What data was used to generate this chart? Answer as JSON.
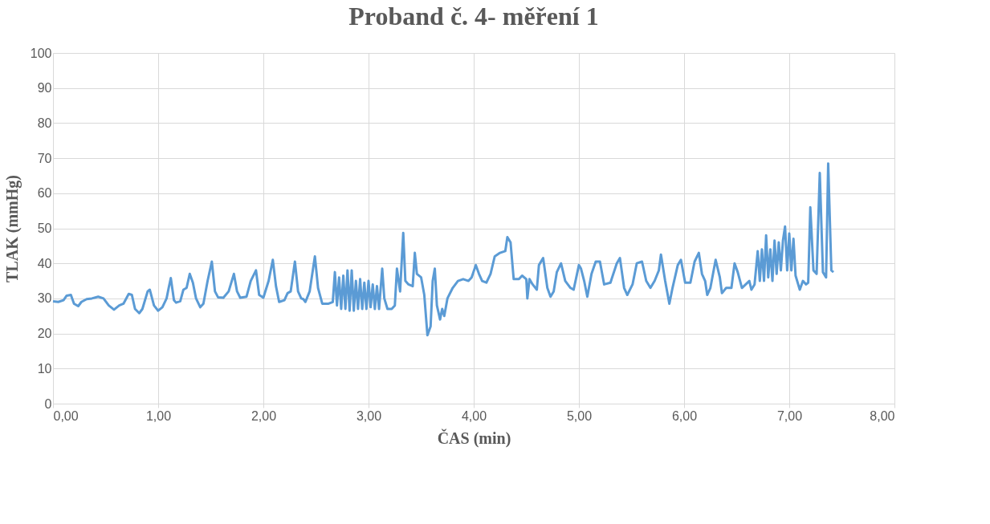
{
  "chart_data": {
    "type": "line",
    "title": "Proband č. 4- měření 1",
    "xlabel": "ČAS (min)",
    "ylabel": "TLAK (mmHg)",
    "xlim": [
      0,
      8
    ],
    "ylim": [
      0,
      100
    ],
    "xticks": [
      {
        "value": 0,
        "label": "0,00"
      },
      {
        "value": 1,
        "label": "1,00"
      },
      {
        "value": 2,
        "label": "2,00"
      },
      {
        "value": 3,
        "label": "3,00"
      },
      {
        "value": 4,
        "label": "4,00"
      },
      {
        "value": 5,
        "label": "5,00"
      },
      {
        "value": 6,
        "label": "6,00"
      },
      {
        "value": 7,
        "label": "7,00"
      },
      {
        "value": 8,
        "label": "8,00"
      }
    ],
    "yticks": [
      0,
      10,
      20,
      30,
      40,
      50,
      60,
      70,
      80,
      90,
      100
    ],
    "grid": true,
    "legend": false,
    "marker": "none",
    "line_style": "solid",
    "x": [
      0.0,
      0.05,
      0.1,
      0.13,
      0.17,
      0.2,
      0.24,
      0.27,
      0.32,
      0.37,
      0.43,
      0.48,
      0.53,
      0.58,
      0.63,
      0.67,
      0.72,
      0.75,
      0.78,
      0.82,
      0.85,
      0.9,
      0.92,
      0.96,
      1.0,
      1.04,
      1.08,
      1.1,
      1.12,
      1.15,
      1.17,
      1.21,
      1.24,
      1.27,
      1.3,
      1.33,
      1.36,
      1.4,
      1.43,
      1.47,
      1.51,
      1.54,
      1.57,
      1.62,
      1.67,
      1.72,
      1.75,
      1.78,
      1.84,
      1.88,
      1.93,
      1.96,
      2.0,
      2.05,
      2.09,
      2.12,
      2.15,
      2.2,
      2.23,
      2.26,
      2.3,
      2.33,
      2.36,
      2.38,
      2.4,
      2.44,
      2.49,
      2.52,
      2.56,
      2.62,
      2.66,
      2.68,
      2.7,
      2.72,
      2.74,
      2.76,
      2.78,
      2.8,
      2.82,
      2.84,
      2.86,
      2.88,
      2.9,
      2.92,
      2.94,
      2.96,
      2.98,
      3.0,
      3.02,
      3.04,
      3.06,
      3.08,
      3.1,
      3.13,
      3.15,
      3.18,
      3.22,
      3.25,
      3.27,
      3.3,
      3.33,
      3.35,
      3.38,
      3.42,
      3.44,
      3.46,
      3.5,
      3.53,
      3.56,
      3.59,
      3.61,
      3.63,
      3.65,
      3.68,
      3.7,
      3.72,
      3.75,
      3.8,
      3.85,
      3.9,
      3.95,
      3.98,
      4.02,
      4.05,
      4.08,
      4.12,
      4.16,
      4.2,
      4.25,
      4.3,
      4.32,
      4.35,
      4.38,
      4.43,
      4.46,
      4.5,
      4.51,
      4.53,
      4.56,
      4.6,
      4.62,
      4.66,
      4.7,
      4.73,
      4.76,
      4.79,
      4.83,
      4.87,
      4.92,
      4.95,
      5.0,
      5.02,
      5.05,
      5.08,
      5.12,
      5.16,
      5.2,
      5.24,
      5.3,
      5.36,
      5.39,
      5.43,
      5.46,
      5.51,
      5.55,
      5.6,
      5.64,
      5.68,
      5.72,
      5.76,
      5.78,
      5.82,
      5.86,
      5.89,
      5.94,
      5.97,
      6.01,
      6.06,
      6.1,
      6.14,
      6.17,
      6.2,
      6.22,
      6.25,
      6.3,
      6.34,
      6.36,
      6.4,
      6.45,
      6.48,
      6.51,
      6.55,
      6.62,
      6.64,
      6.67,
      6.7,
      6.72,
      6.74,
      6.76,
      6.78,
      6.8,
      6.82,
      6.84,
      6.86,
      6.88,
      6.9,
      6.92,
      6.94,
      6.96,
      6.98,
      7.0,
      7.02,
      7.04,
      7.06,
      7.1,
      7.13,
      7.16,
      7.18,
      7.2,
      7.23,
      7.26,
      7.29,
      7.32,
      7.35,
      7.37,
      7.4,
      7.42
    ],
    "series": [
      {
        "color": "#5b9bd5",
        "values": [
          29.2,
          29.0,
          29.5,
          30.8,
          31,
          28.5,
          27.8,
          29,
          29.8,
          30,
          30.5,
          30,
          28,
          26.8,
          28,
          28.5,
          31.3,
          31,
          27,
          25.8,
          27,
          32,
          32.5,
          28,
          26.5,
          27.5,
          30,
          33,
          35.8,
          29.5,
          28.8,
          29.2,
          32.5,
          33,
          37,
          34.5,
          30,
          27.5,
          28.5,
          35,
          40.5,
          32,
          30.3,
          30.2,
          32,
          37,
          32,
          30.2,
          30.5,
          35,
          38,
          31,
          30.2,
          35,
          41,
          33.5,
          29,
          29.5,
          31.5,
          32,
          40.5,
          32,
          30,
          29.8,
          29,
          32,
          42,
          33,
          28.5,
          28.5,
          29,
          37.5,
          28,
          36,
          27,
          36.5,
          27,
          38,
          26.5,
          38,
          26.5,
          35,
          27,
          35.5,
          27,
          34.5,
          27,
          35,
          27.5,
          34,
          27,
          33.5,
          27,
          38.5,
          30,
          27,
          27,
          28,
          38.5,
          32,
          48.7,
          35,
          34,
          33.5,
          43,
          37,
          36,
          31,
          19.5,
          22,
          35,
          38.5,
          28,
          24,
          27,
          25,
          30,
          33,
          35,
          35.5,
          35,
          36,
          39.5,
          37,
          35,
          34.5,
          37,
          42,
          43,
          43.5,
          47.5,
          46,
          35.5,
          35.5,
          36.5,
          35.5,
          30,
          35.5,
          34,
          32.5,
          39.5,
          41.5,
          33,
          30.5,
          32,
          37.5,
          40,
          35,
          33,
          32.5,
          39.5,
          38.5,
          35,
          30.5,
          37,
          40.5,
          40.5,
          34,
          34.5,
          40,
          41.5,
          33,
          31,
          34,
          40,
          40.5,
          35,
          33,
          35,
          38,
          42.5,
          35,
          28.5,
          33,
          39.5,
          41,
          34.5,
          34.5,
          40.5,
          43,
          37,
          35,
          31,
          33,
          41,
          36,
          31.5,
          33,
          33,
          40,
          37.5,
          33,
          35,
          32.5,
          34,
          43.5,
          35,
          44,
          35,
          48,
          36,
          44,
          35,
          46.5,
          37,
          46,
          38,
          46.5,
          50.5,
          38,
          48.5,
          38,
          47,
          36.5,
          32.5,
          35,
          34,
          34.5,
          56,
          38,
          37,
          65.8,
          37.5,
          36,
          68.5,
          38,
          37.5
        ]
      }
    ]
  }
}
